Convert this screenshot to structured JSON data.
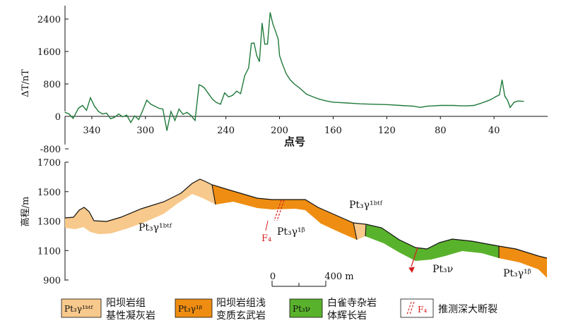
{
  "chart_data": {
    "type": "line",
    "ylabel": "ΔT/nT",
    "xlabel": "点号",
    "x_ticks": [
      "340",
      "300",
      "240",
      "200",
      "160",
      "120",
      "80",
      "40"
    ],
    "y_ticks": [
      "2400",
      "1600",
      "800",
      "0",
      "-800"
    ],
    "colors": {
      "line": "#1f7a3a"
    },
    "series": [
      {
        "x": [
          360,
          357,
          354,
          350,
          347,
          344,
          341,
          338,
          335,
          332,
          329,
          326,
          323,
          320,
          317,
          314,
          311,
          308,
          305,
          302,
          299,
          296,
          293,
          290,
          287,
          284,
          281,
          278,
          275,
          272,
          269,
          266,
          263,
          260,
          258,
          256,
          253,
          250,
          247,
          244,
          241,
          238,
          235,
          232,
          229,
          226,
          223,
          221,
          219,
          217,
          215,
          213,
          211,
          209,
          207,
          205,
          203,
          201,
          200,
          198,
          195,
          192,
          189,
          185,
          180,
          175,
          170,
          165,
          160,
          155,
          150,
          145,
          140,
          130,
          120,
          110,
          100,
          95,
          90,
          85,
          80,
          75,
          70,
          65,
          60,
          55,
          50,
          45,
          42,
          39,
          36,
          34,
          32,
          30,
          28,
          25,
          22,
          18
        ],
        "y": [
          100,
          60,
          -50,
          200,
          270,
          150,
          460,
          250,
          120,
          60,
          80,
          -60,
          -20,
          60,
          -10,
          30,
          -150,
          10,
          -80,
          150,
          400,
          300,
          250,
          200,
          180,
          -350,
          120,
          -100,
          180,
          50,
          100,
          20,
          -100,
          780,
          750,
          700,
          560,
          420,
          340,
          300,
          580,
          480,
          520,
          620,
          560,
          1000,
          1200,
          1800,
          1810,
          1500,
          1350,
          2300,
          1780,
          1780,
          2560,
          2280,
          2100,
          1900,
          1500,
          1300,
          1050,
          900,
          800,
          700,
          550,
          480,
          420,
          380,
          350,
          340,
          330,
          320,
          310,
          300,
          290,
          270,
          250,
          220,
          250,
          260,
          270,
          270,
          270,
          260,
          260,
          270,
          320,
          380,
          420,
          480,
          530,
          900,
          500,
          400,
          220,
          350,
          380,
          370
        ]
      }
    ],
    "x_domain": [
      360,
      0
    ],
    "ylim": [
      -800,
      2700
    ]
  },
  "section": {
    "ylabel": "高程/m",
    "y_ticks": [
      "1700",
      "1500",
      "1300",
      "1100",
      "900"
    ],
    "scale_bar": {
      "left_label": "0",
      "right_label": "400 m"
    },
    "unit_labels": [
      {
        "text": "Pt₃γ¹ᵇᵗᶠ"
      },
      {
        "text": "Pt₃γ¹ᵝ"
      },
      {
        "text": "Pt₃γ¹ᵇᵗᶠ"
      },
      {
        "text": "Pt₃ν"
      },
      {
        "text": "Pt₃γ¹ᵝ"
      }
    ],
    "fault_label": "F₄",
    "colors": {
      "tuff": "#f8c98c",
      "basalt": "#ee8d12",
      "gabbro": "#59b22c",
      "fault": "#d42020"
    }
  },
  "legend": [
    {
      "symbol": "Pt₃γ¹ᵇᵗᶠ",
      "line1": "阳坝岩组",
      "line2": "基性凝灰岩",
      "color": "#f8c98c"
    },
    {
      "symbol": "Pt₃γ¹ᵝ",
      "line1": "阳坝岩组浅",
      "line2": "变质玄武岩",
      "color": "#ee8d12"
    },
    {
      "symbol": "Pt₃ν",
      "line1": "白雀寺杂岩",
      "line2": "体辉长岩",
      "color": "#59b22c"
    },
    {
      "symbol": "F₄",
      "line1": "推测深大断裂",
      "line2": "",
      "color": "#ffffff"
    }
  ]
}
